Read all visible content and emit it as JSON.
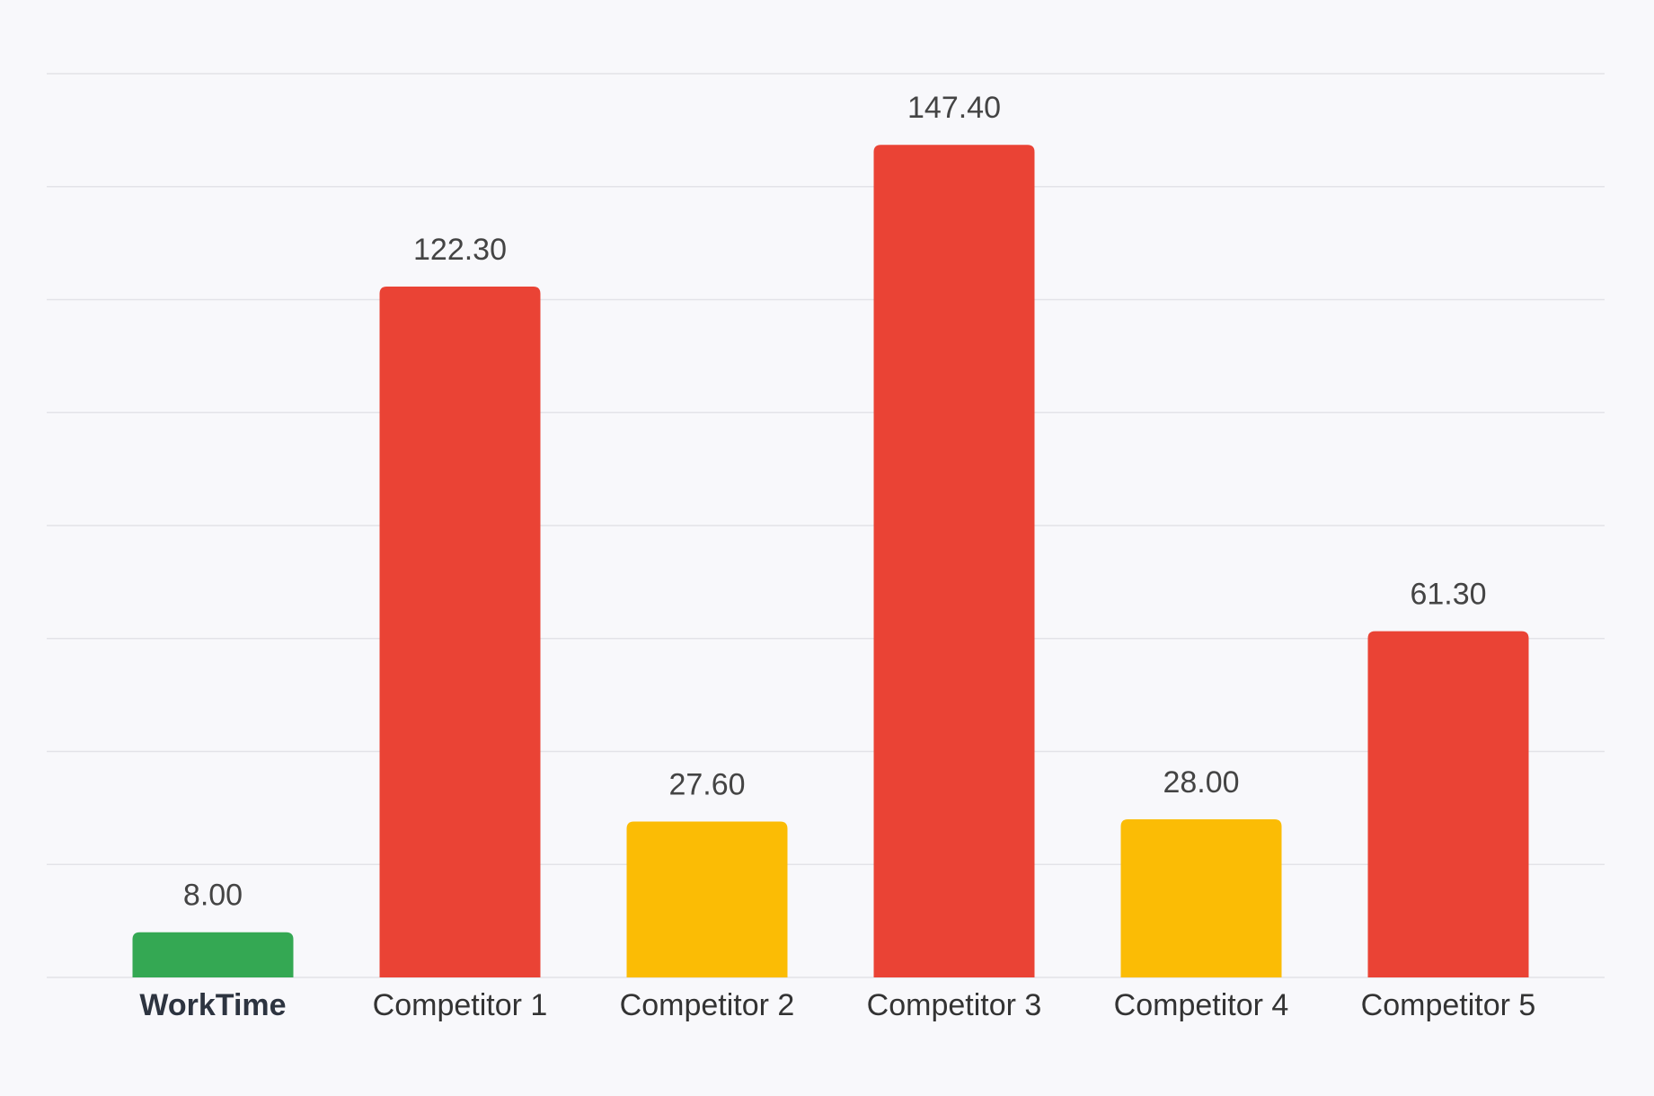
{
  "chart_data": {
    "type": "bar",
    "title": "",
    "xlabel": "",
    "ylabel": "",
    "categories": [
      "WorkTime",
      "Competitor 1",
      "Competitor 2",
      "Competitor 3",
      "Competitor 4",
      "Competitor 5"
    ],
    "values": [
      8.0,
      122.3,
      27.6,
      147.4,
      28.0,
      61.3
    ],
    "value_labels": [
      "8.00",
      "122.30",
      "27.60",
      "147.40",
      "28.00",
      "61.30"
    ],
    "bar_colors": [
      "#34a853",
      "#ea4335",
      "#fbbc05",
      "#ea4335",
      "#fbbc05",
      "#ea4335"
    ],
    "highlighted_category": "WorkTime",
    "grid": true,
    "legend": "none",
    "ylim": [
      0,
      160
    ]
  },
  "colors": {
    "background": "#f8f8fb",
    "grid": "#e3e3e8",
    "value_label": "#444444",
    "category_label": "#333333",
    "highlight_label": "#2d3440"
  }
}
